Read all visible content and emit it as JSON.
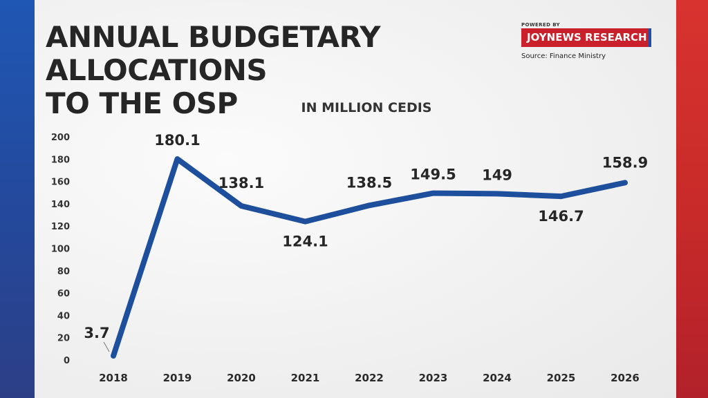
{
  "title_line1": "ANNUAL BUDGETARY ALLOCATIONS",
  "title_line2": "TO THE OSP",
  "branding": {
    "powered_by": "POWERED BY",
    "name": "JOYNEWS RESEARCH",
    "source": "Source: Finance Ministry"
  },
  "colors": {
    "line": "#1d4f9c",
    "brand_red": "#c9202c",
    "brand_blue": "#1f4fa8",
    "text": "#262626"
  },
  "chart_data": {
    "type": "line",
    "title": "ANNUAL BUDGETARY ALLOCATIONS TO THE OSP",
    "subtitle": "IN MILLION CEDIS",
    "xlabel": "",
    "ylabel": "",
    "categories": [
      "2018",
      "2019",
      "2020",
      "2021",
      "2022",
      "2023",
      "2024",
      "2025",
      "2026"
    ],
    "values": [
      3.7,
      180.1,
      138.1,
      124.1,
      138.5,
      149.5,
      149,
      146.7,
      158.9
    ],
    "value_labels": [
      "3.7",
      "180.1",
      "138.1",
      "124.1",
      "138.5",
      "149.5",
      "149",
      "146.7",
      "158.9"
    ],
    "ylim": [
      0,
      200
    ],
    "yticks": [
      "0",
      "20",
      "40",
      "60",
      "80",
      "100",
      "120",
      "140",
      "160",
      "180",
      "200"
    ],
    "grid": false,
    "legend": "none"
  }
}
